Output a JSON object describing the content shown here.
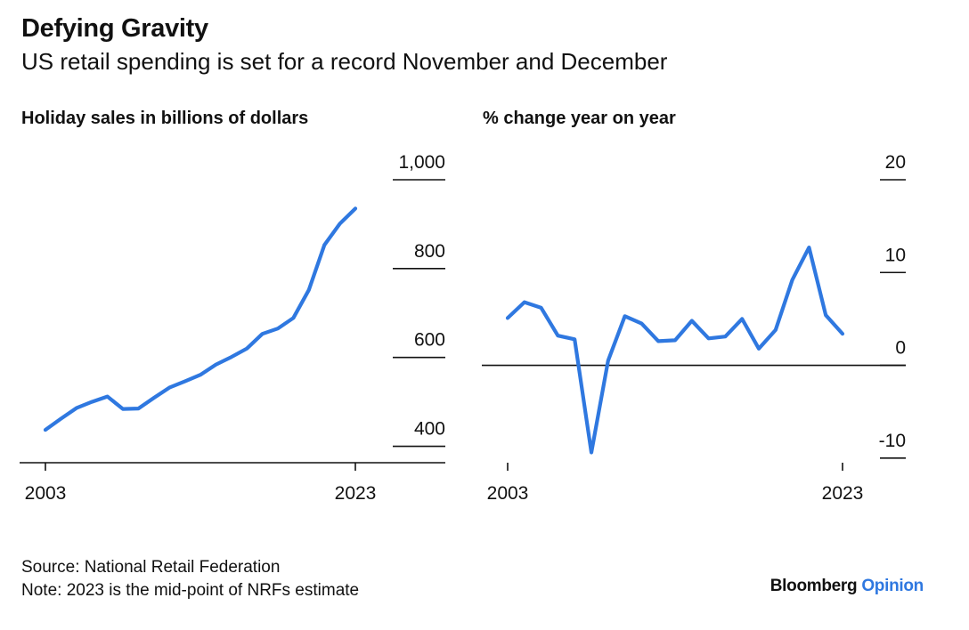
{
  "header": {
    "title": "Defying Gravity",
    "subtitle": "US retail spending is set for a record November and December"
  },
  "footer": {
    "source": "Source: National Retail Federation",
    "note": "Note: 2023 is the mid-point of NRFs estimate"
  },
  "brand": {
    "name": "Bloomberg",
    "product": "Opinion"
  },
  "colors": {
    "line": "#2f78e0",
    "axis": "#111111",
    "brand_accent": "#2f78e0"
  },
  "chart_data": [
    {
      "type": "line",
      "title": "Holiday sales in billions of dollars",
      "x_tick_labels": [
        "2003",
        "2023"
      ],
      "x": [
        2003,
        2004,
        2005,
        2006,
        2007,
        2008,
        2009,
        2010,
        2011,
        2012,
        2013,
        2014,
        2015,
        2016,
        2017,
        2018,
        2019,
        2020,
        2021,
        2022,
        2023
      ],
      "series": [
        {
          "values": [
            437,
            462,
            486,
            500,
            512,
            484,
            485,
            509,
            532,
            546,
            561,
            584,
            601,
            620,
            653,
            665,
            689,
            752,
            853,
            901,
            935
          ]
        }
      ],
      "ylim": [
        363,
        1000
      ],
      "yticks": [
        400,
        600,
        800,
        1000
      ],
      "ytick_labels": [
        "400",
        "600",
        "800",
        "1,000"
      ],
      "y_axis_side": "right",
      "grid": "horizontal ticks at right"
    },
    {
      "type": "line",
      "title": "% change year on year",
      "x_tick_labels": [
        "2003",
        "2023"
      ],
      "x": [
        2003,
        2004,
        2005,
        2006,
        2007,
        2008,
        2009,
        2010,
        2011,
        2012,
        2013,
        2014,
        2015,
        2016,
        2017,
        2018,
        2019,
        2020,
        2021,
        2022,
        2023
      ],
      "series": [
        {
          "values": [
            5.1,
            6.8,
            6.2,
            3.2,
            2.8,
            -9.4,
            0.5,
            5.3,
            4.5,
            2.6,
            2.7,
            4.8,
            2.9,
            3.1,
            5.0,
            1.8,
            3.8,
            9.2,
            12.7,
            5.4,
            3.4
          ]
        }
      ],
      "ylim": [
        -10.5,
        20
      ],
      "yticks": [
        -10,
        0,
        10,
        20
      ],
      "ytick_labels": [
        "-10",
        "0",
        "10",
        "20"
      ],
      "zero_line": true,
      "y_axis_side": "right",
      "grid": "horizontal ticks at right"
    }
  ]
}
